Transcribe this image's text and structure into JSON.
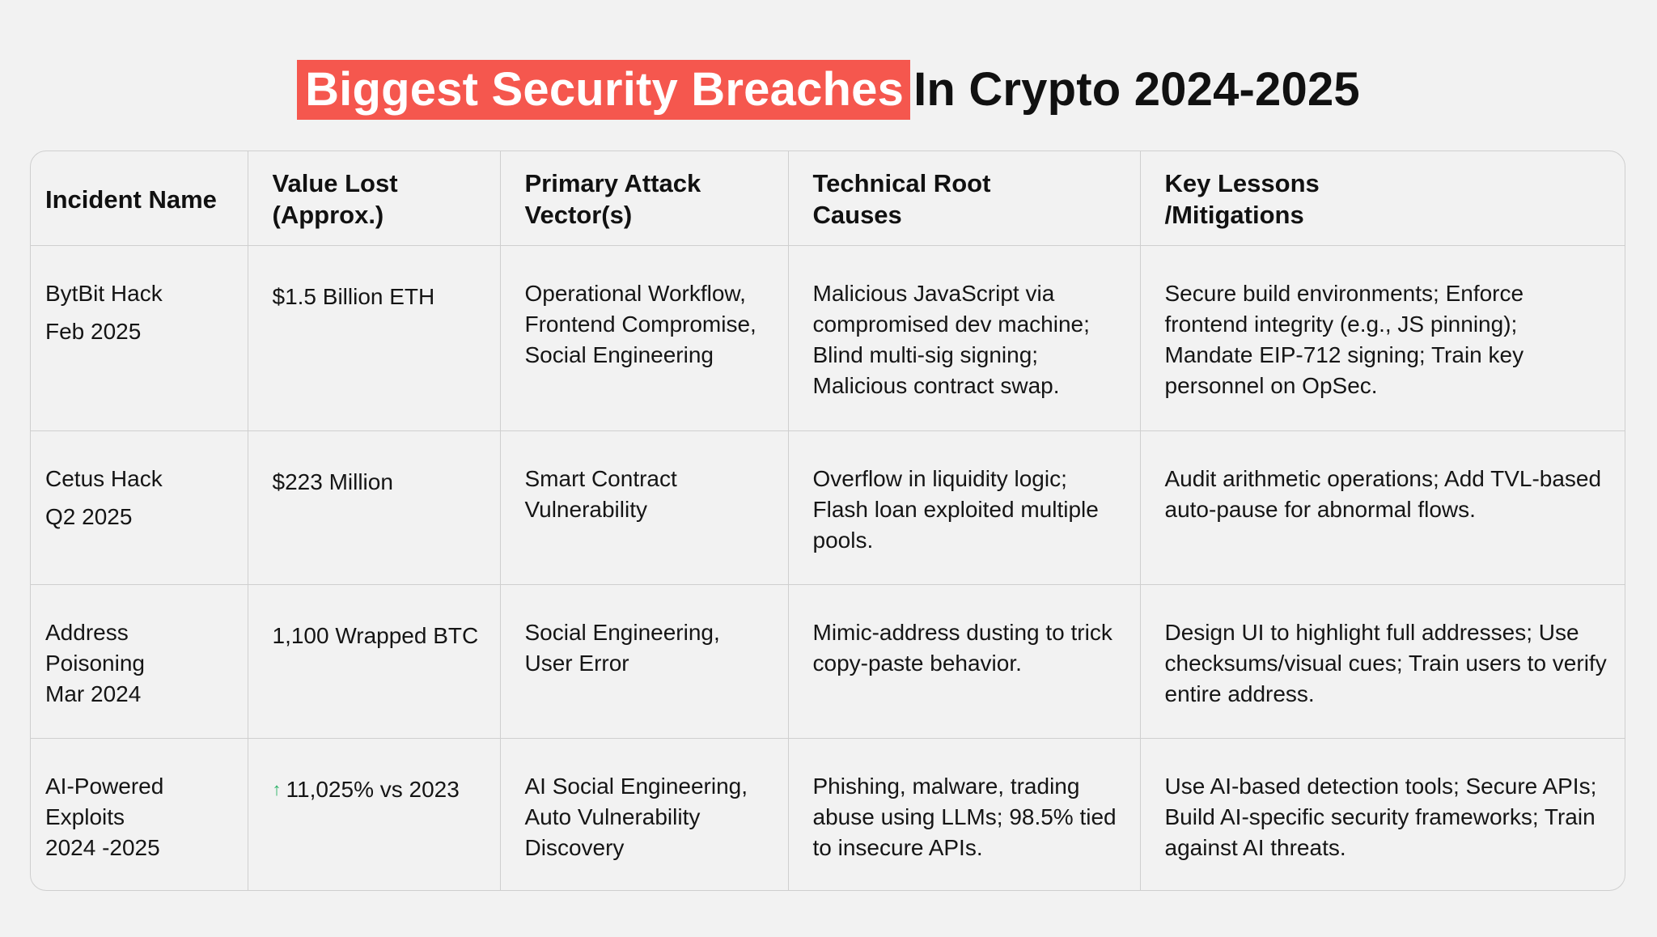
{
  "title": {
    "highlight": "Biggest Security Breaches",
    "rest": "In Crypto 2024-2025",
    "highlight_color": "#f5574e"
  },
  "table": {
    "headers": [
      "Incident Name",
      "Value Lost (Approx.)",
      "Primary Attack Vector(s)",
      "Technical Root Causes",
      "Key Lessons /Mitigations"
    ],
    "header_lines": {
      "value_lost": [
        "Value Lost",
        "(Approx.)"
      ],
      "attack_vector": [
        "Primary Attack",
        "Vector(s)"
      ],
      "root_causes": [
        "Technical Root",
        "Causes"
      ],
      "lessons": [
        "Key Lessons",
        "/Mitigations"
      ]
    },
    "rows": [
      {
        "incident_lines": [
          "BytBit Hack",
          "Feb 2025"
        ],
        "value_lost": "$1.5 Billion ETH",
        "attack_vector": "Operational Workflow, Frontend Compromise, Social Engineering",
        "root_causes": "Malicious JavaScript via compromised dev machine; Blind multi-sig signing; Malicious contract swap.",
        "lessons": "Secure build environments; Enforce frontend integrity (e.g., JS pinning); Mandate EIP-712 signing; Train key personnel on OpSec."
      },
      {
        "incident_lines": [
          "Cetus Hack",
          "Q2 2025"
        ],
        "value_lost": "$223 Million",
        "attack_vector": "Smart Contract Vulnerability",
        "root_causes": "Overflow in liquidity logic; Flash loan exploited multiple pools.",
        "lessons": "Audit arithmetic operations; Add TVL-based auto-pause for abnormal flows."
      },
      {
        "incident_lines": [
          "Address",
          "Poisoning",
          "Mar 2024"
        ],
        "value_lost": "1,100 Wrapped BTC",
        "attack_vector": "Social Engineering, User Error",
        "root_causes": "Mimic-address dusting to trick copy-paste behavior.",
        "lessons": "Design UI to highlight full addresses; Use checksums/visual cues; Train users to verify entire address."
      },
      {
        "incident_lines": [
          "AI-Powered",
          "Exploits",
          "2024 -2025"
        ],
        "value_icon": "arrow-up-icon",
        "value_icon_glyph": "↑",
        "value_icon_color": "#2fb36a",
        "value_lost": "11,025% vs 2023",
        "attack_vector": "AI Social Engineering, Auto Vulnerability Discovery",
        "root_causes": "Phishing, malware, trading abuse using LLMs; 98.5% tied to insecure APIs.",
        "lessons": "Use AI-based detection tools; Secure APIs; Build AI-specific security frameworks; Train against AI threats."
      }
    ]
  }
}
